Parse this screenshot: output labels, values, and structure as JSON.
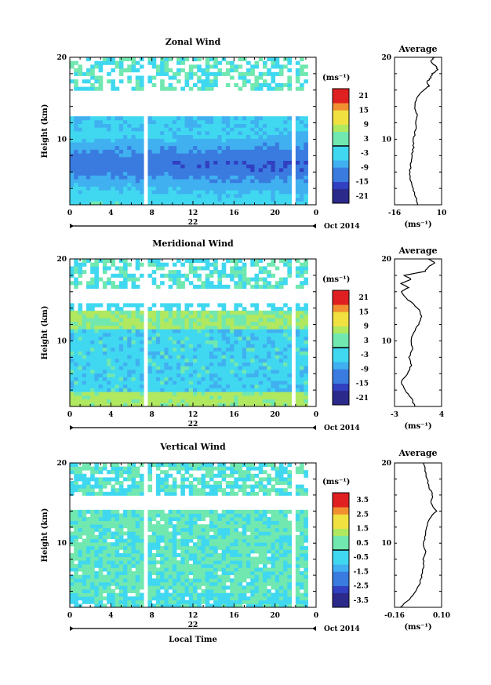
{
  "chart_data": [
    {
      "type": "heatmap",
      "title": "Zonal Wind",
      "ylabel": "Height (km)",
      "ylim": [
        2,
        20
      ],
      "y_ticks": [
        "20",
        "10"
      ],
      "x_ticks": [
        "0",
        "4",
        "8",
        "12",
        "16",
        "20",
        "0"
      ],
      "xlim": [
        0,
        24
      ],
      "date_label": "22",
      "month_label": "Oct 2014",
      "colorbar": {
        "unit": "(ms⁻¹)",
        "ticks": [
          "21",
          "15",
          "9",
          "3",
          "-3",
          "-9",
          "-15",
          "-21"
        ],
        "range": [
          -24,
          24
        ]
      },
      "grid": false
    },
    {
      "type": "line",
      "title": "Average",
      "ylim": [
        2,
        20
      ],
      "y_ticks": [
        "20",
        "10"
      ],
      "xlim": [
        -16,
        10
      ],
      "x_ticks": [
        "-16",
        "10"
      ],
      "xlabel": "(ms⁻¹)",
      "profile": [
        {
          "h": 2.0,
          "v": -3.0
        },
        {
          "h": 3.0,
          "v": -4.5
        },
        {
          "h": 4.0,
          "v": -6.0
        },
        {
          "h": 5.0,
          "v": -7.0
        },
        {
          "h": 6.0,
          "v": -7.5
        },
        {
          "h": 7.0,
          "v": -7.0
        },
        {
          "h": 8.0,
          "v": -6.5
        },
        {
          "h": 9.0,
          "v": -5.5
        },
        {
          "h": 10.0,
          "v": -5.5
        },
        {
          "h": 11.0,
          "v": -4.5
        },
        {
          "h": 12.0,
          "v": -4.0
        },
        {
          "h": 13.0,
          "v": -3.5
        },
        {
          "h": 14.0,
          "v": -5.0
        },
        {
          "h": 15.0,
          "v": -4.0
        },
        {
          "h": 16.0,
          "v": 0.0
        },
        {
          "h": 16.5,
          "v": 3.0
        },
        {
          "h": 17.0,
          "v": 2.0
        },
        {
          "h": 17.5,
          "v": 4.0
        },
        {
          "h": 18.0,
          "v": 5.0
        },
        {
          "h": 18.5,
          "v": 8.0
        },
        {
          "h": 19.0,
          "v": 6.5
        },
        {
          "h": 19.5,
          "v": 4.0
        },
        {
          "h": 20.0,
          "v": 6.0
        }
      ]
    },
    {
      "type": "heatmap",
      "title": "Meridional Wind",
      "ylabel": "Height (km)",
      "ylim": [
        2,
        20
      ],
      "y_ticks": [
        "20",
        "10"
      ],
      "x_ticks": [
        "0",
        "4",
        "8",
        "12",
        "16",
        "20",
        "0"
      ],
      "xlim": [
        0,
        24
      ],
      "date_label": "22",
      "month_label": "Oct 2014",
      "colorbar": {
        "unit": "(ms⁻¹)",
        "ticks": [
          "21",
          "15",
          "9",
          "3",
          "-3",
          "-9",
          "-15",
          "-21"
        ],
        "range": [
          -24,
          24
        ]
      },
      "grid": false
    },
    {
      "type": "line",
      "title": "Average",
      "ylim": [
        2,
        20
      ],
      "y_ticks": [
        "20",
        "10"
      ],
      "xlim": [
        -3,
        4
      ],
      "x_ticks": [
        "-3",
        "4"
      ],
      "xlabel": "(ms⁻¹)",
      "profile": [
        {
          "h": 2.0,
          "v": 0.0
        },
        {
          "h": 3.0,
          "v": -0.5
        },
        {
          "h": 4.0,
          "v": -1.5
        },
        {
          "h": 5.0,
          "v": -2.0
        },
        {
          "h": 6.0,
          "v": -1.0
        },
        {
          "h": 7.0,
          "v": -0.5
        },
        {
          "h": 8.0,
          "v": -0.8
        },
        {
          "h": 9.0,
          "v": -0.3
        },
        {
          "h": 10.0,
          "v": -0.5
        },
        {
          "h": 11.0,
          "v": -0.2
        },
        {
          "h": 12.0,
          "v": 0.5
        },
        {
          "h": 13.0,
          "v": 1.0
        },
        {
          "h": 14.0,
          "v": 0.5
        },
        {
          "h": 15.0,
          "v": -1.0
        },
        {
          "h": 16.0,
          "v": -2.0
        },
        {
          "h": 16.5,
          "v": -1.0
        },
        {
          "h": 17.0,
          "v": -2.0
        },
        {
          "h": 17.5,
          "v": -0.5
        },
        {
          "h": 18.0,
          "v": -1.5
        },
        {
          "h": 18.5,
          "v": 1.5
        },
        {
          "h": 19.0,
          "v": 2.0
        },
        {
          "h": 19.5,
          "v": 3.0
        },
        {
          "h": 20.0,
          "v": 2.0
        }
      ]
    },
    {
      "type": "heatmap",
      "title": "Vertical Wind",
      "ylabel": "Height (km)",
      "ylim": [
        2,
        20
      ],
      "y_ticks": [
        "20",
        "10"
      ],
      "x_ticks": [
        "0",
        "4",
        "8",
        "12",
        "16",
        "20",
        "0"
      ],
      "xlim": [
        0,
        24
      ],
      "date_label": "22",
      "month_label": "Oct 2014",
      "xlabel": "Local Time",
      "colorbar": {
        "unit": "(ms⁻¹)",
        "ticks": [
          "3.5",
          "2.5",
          "1.5",
          "0.5",
          "-0.5",
          "-1.5",
          "-2.5",
          "-3.5"
        ],
        "range": [
          -4,
          4
        ]
      },
      "grid": false
    },
    {
      "type": "line",
      "title": "Average",
      "ylim": [
        2,
        20
      ],
      "y_ticks": [
        "20",
        "10"
      ],
      "xlim": [
        -0.16,
        0.1
      ],
      "x_ticks": [
        "-0.16",
        "0.10"
      ],
      "xlabel": "(ms⁻¹)",
      "profile": [
        {
          "h": 2.0,
          "v": -0.13
        },
        {
          "h": 3.0,
          "v": -0.08
        },
        {
          "h": 4.0,
          "v": -0.04
        },
        {
          "h": 5.0,
          "v": -0.02
        },
        {
          "h": 6.0,
          "v": -0.01
        },
        {
          "h": 7.0,
          "v": 0.0
        },
        {
          "h": 8.0,
          "v": 0.0
        },
        {
          "h": 9.0,
          "v": 0.01
        },
        {
          "h": 10.0,
          "v": 0.0
        },
        {
          "h": 11.0,
          "v": 0.01
        },
        {
          "h": 12.0,
          "v": 0.02
        },
        {
          "h": 13.0,
          "v": 0.03
        },
        {
          "h": 14.0,
          "v": 0.07
        },
        {
          "h": 15.0,
          "v": 0.04
        },
        {
          "h": 16.0,
          "v": 0.05
        },
        {
          "h": 17.0,
          "v": 0.03
        },
        {
          "h": 18.0,
          "v": 0.02
        },
        {
          "h": 19.0,
          "v": 0.01
        },
        {
          "h": 20.0,
          "v": 0.0
        }
      ]
    }
  ]
}
